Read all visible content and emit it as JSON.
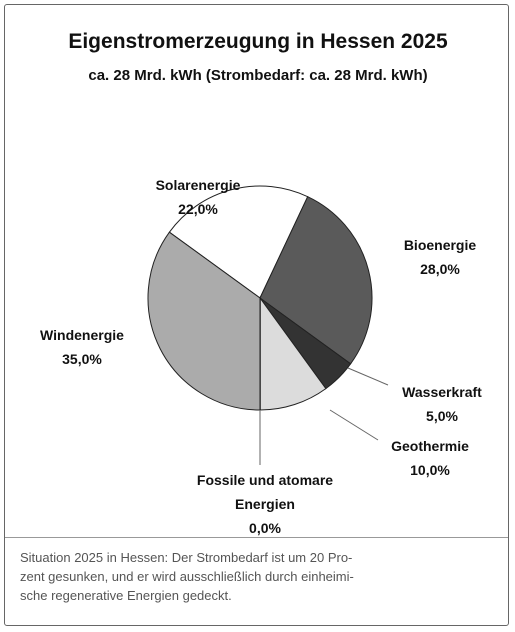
{
  "chart_data": {
    "type": "pie",
    "title": "Eigenstromerzeugung in Hessen 2025",
    "subtitle": "ca. 28 Mrd. kWh (Strombedarf: ca. 28 Mrd. kWh)",
    "categories": [
      "Solarenergie",
      "Bioenergie",
      "Wasserkraft",
      "Geothermie",
      "Fossile und atomare Energien",
      "Windenergie"
    ],
    "values": [
      22,
      28,
      5,
      10,
      0,
      35
    ],
    "value_labels": [
      "22,0%",
      "28,0%",
      "5,0%",
      "10,0%",
      "0,0%",
      "35,0%"
    ],
    "colors": [
      "#ffffff",
      "#5a5a5a",
      "#333333",
      "#dcdcdc",
      "#000000",
      "#ababab"
    ]
  },
  "caption": {
    "lines": [
      "Situation 2025 in Hessen: Der Strombedarf ist um 20 Pro-",
      "zent gesunken, und er wird ausschließlich durch einheimi-",
      "sche regenerative Energien gedeckt."
    ]
  }
}
